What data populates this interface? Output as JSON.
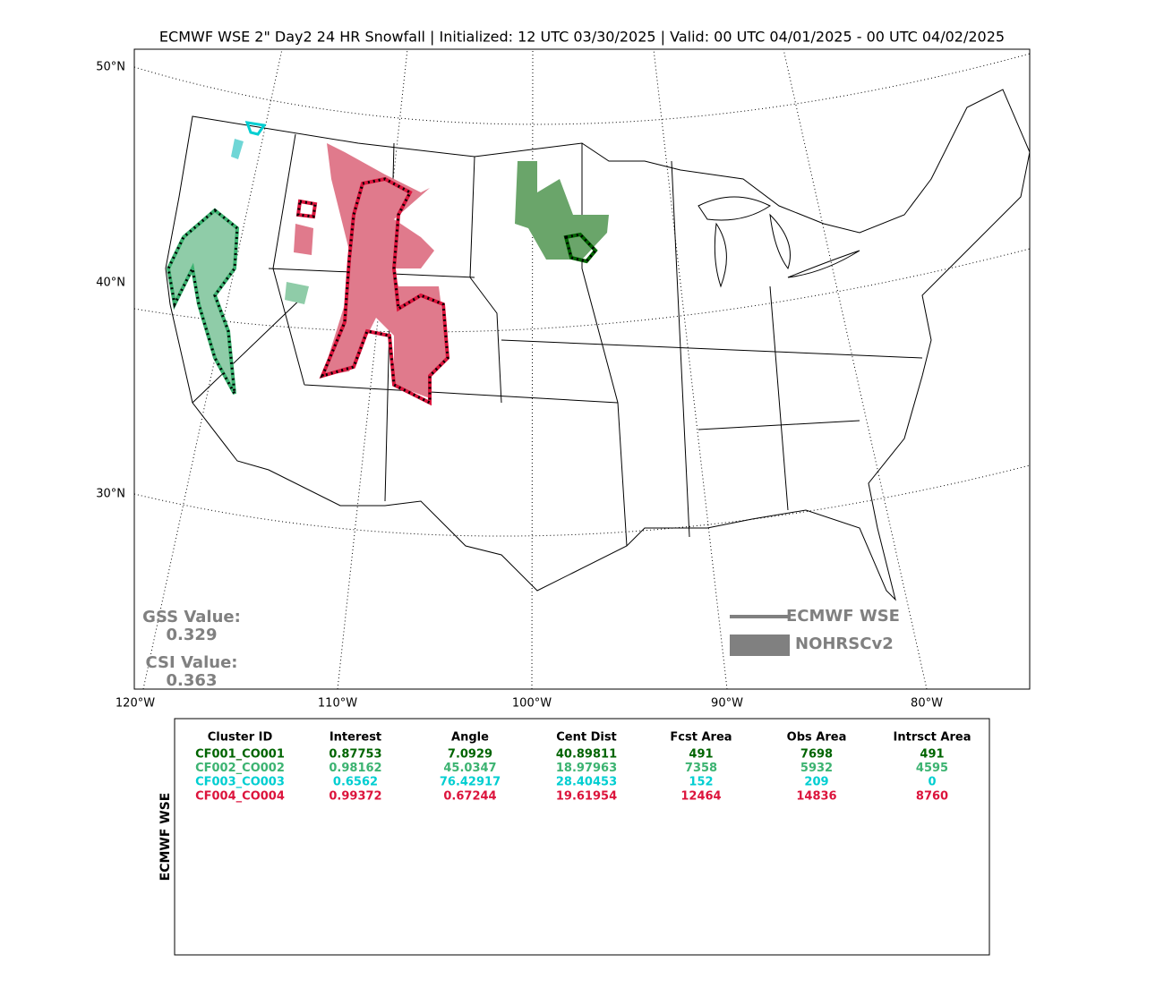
{
  "title": "ECMWF WSE 2\" Day2 24 HR Snowfall | Initialized: 12 UTC 03/30/2025 | Valid: 00 UTC 04/01/2025 - 00 UTC 04/02/2025",
  "map": {
    "lat_labels": [
      "50°N",
      "40°N",
      "30°N"
    ],
    "lon_labels": [
      "120°W",
      "110°W",
      "100°W",
      "90°W",
      "80°W"
    ],
    "scores": [
      {
        "label": "GSS Value:",
        "value": "0.329"
      },
      {
        "label": "CSI Value:",
        "value": "0.363"
      }
    ],
    "legend": [
      "ECMWF WSE",
      "NOHRSCv2"
    ]
  },
  "table": {
    "side_label": "ECMWF WSE",
    "columns": [
      "Cluster ID",
      "Interest",
      "Angle",
      "Cent Dist",
      "Fcst Area",
      "Obs Area",
      "Intrsct Area"
    ],
    "row_colors": [
      "#006400",
      "#3cb371",
      "#00ced1",
      "#dc143c"
    ],
    "rows": [
      [
        "CF001_CO001",
        "0.87753",
        "7.0929",
        "40.89811",
        "491",
        "7698",
        "491"
      ],
      [
        "CF002_CO002",
        "0.98162",
        "45.0347",
        "18.97963",
        "7358",
        "5932",
        "4595"
      ],
      [
        "CF003_CO003",
        "0.6562",
        "76.42917",
        "28.40453",
        "152",
        "209",
        "0"
      ],
      [
        "CF004_CO004",
        "0.99372",
        "0.67244",
        "19.61954",
        "12464",
        "14836",
        "8760"
      ]
    ]
  }
}
